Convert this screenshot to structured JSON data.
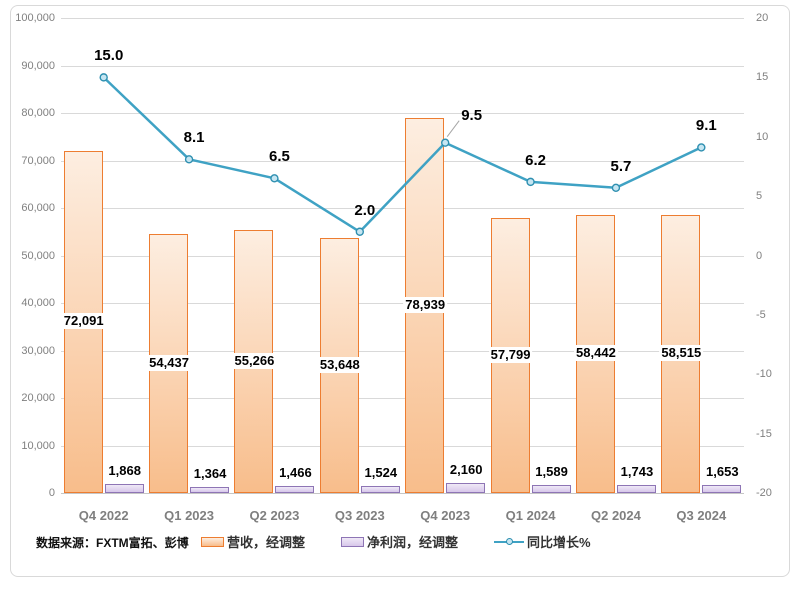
{
  "chart_data": {
    "type": "combo-bar-line",
    "categories": [
      "Q4 2022",
      "Q1 2023",
      "Q2 2023",
      "Q3 2023",
      "Q4 2023",
      "Q1 2024",
      "Q2 2024",
      "Q3 2024"
    ],
    "series": [
      {
        "name": "营收，经调整",
        "type": "bar",
        "axis": "left",
        "border_color": "#ED7D31",
        "fill_top": "#FDEEE1",
        "fill_bottom": "#F8BD8B",
        "values": [
          72091,
          54437,
          55266,
          53648,
          78939,
          57799,
          58442,
          58515
        ],
        "labels": [
          "72,091",
          "54,437",
          "55,266",
          "53,648",
          "78,939",
          "57,799",
          "58,442",
          "58,515"
        ]
      },
      {
        "name": "净利润，经调整",
        "type": "bar",
        "axis": "left",
        "border_color": "#8E75B5",
        "fill_top": "#EFE9F7",
        "fill_bottom": "#D7C7EA",
        "values": [
          1868,
          1364,
          1466,
          1524,
          2160,
          1589,
          1743,
          1653
        ],
        "labels": [
          "1,868",
          "1,364",
          "1,466",
          "1,524",
          "2,160",
          "1,589",
          "1,743",
          "1,653"
        ]
      },
      {
        "name": "同比增长%",
        "type": "line",
        "axis": "right",
        "line_color": "#3FA2C4",
        "marker_fill": "#C6E6F2",
        "marker_border": "#2E8FB0",
        "callout_color": "#A6A6A6",
        "callout_index": 4,
        "values": [
          15.0,
          8.1,
          6.5,
          2.0,
          9.5,
          6.2,
          5.7,
          9.1
        ],
        "labels": [
          "15.0",
          "8.1",
          "6.5",
          "2.0",
          "9.5",
          "6.2",
          "5.7",
          "9.1"
        ]
      }
    ],
    "left_axis": {
      "min": 0,
      "max": 100000,
      "tick_labels": [
        "100,000",
        "90,000",
        "80,000",
        "70,000",
        "60,000",
        "50,000",
        "40,000",
        "30,000",
        "20,000",
        "10,000",
        "0"
      ]
    },
    "right_axis": {
      "min": -20,
      "max": 20,
      "tick_labels": [
        "20",
        "15",
        "10",
        "5",
        "0",
        "-5",
        "-10",
        "-15",
        "-20"
      ]
    },
    "grid": true,
    "legend_position": "bottom",
    "source_note": "数据来源：FXTM富拓、彭博",
    "gridline_color": "#D9D9D9",
    "axis_text_color": "#808080"
  }
}
